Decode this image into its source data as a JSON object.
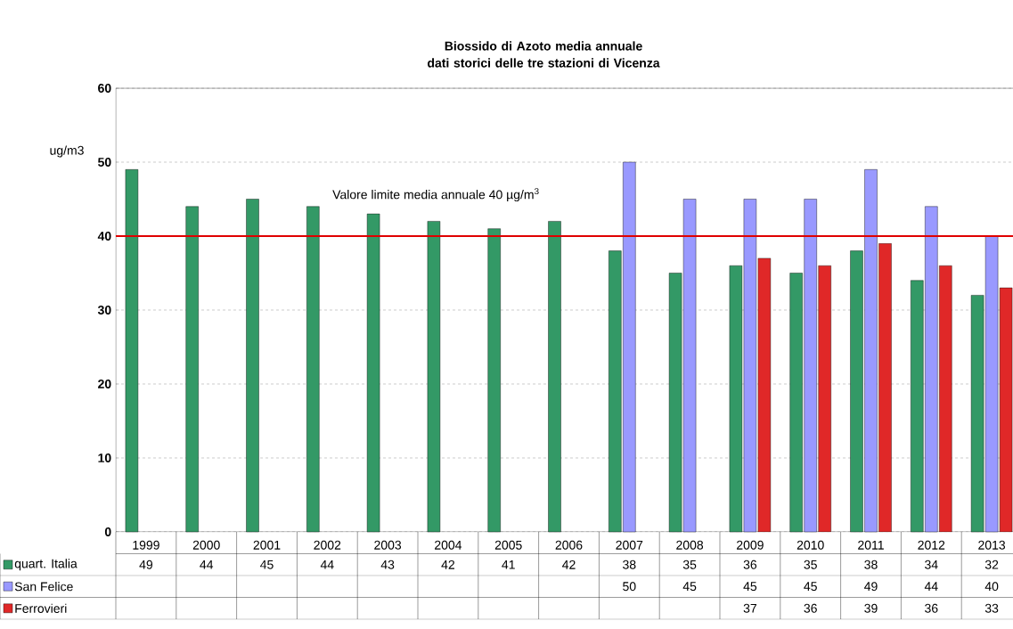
{
  "chart_data": {
    "type": "bar",
    "title": "Biossido di Azoto media annuale\ndati storici delle tre stazioni di Vicenza",
    "ylabel": "ug/m3",
    "categories": [
      "1999",
      "2000",
      "2001",
      "2002",
      "2003",
      "2004",
      "2005",
      "2006",
      "2007",
      "2008",
      "2009",
      "2010",
      "2011",
      "2012",
      "2013"
    ],
    "series": [
      {
        "name": "quart. Italia",
        "color": "#339966",
        "values": [
          49,
          44,
          45,
          44,
          43,
          42,
          41,
          42,
          38,
          35,
          36,
          35,
          38,
          34,
          32
        ]
      },
      {
        "name": "San Felice",
        "color": "#9999ff",
        "values": [
          null,
          null,
          null,
          null,
          null,
          null,
          null,
          null,
          50,
          45,
          45,
          45,
          49,
          44,
          40
        ]
      },
      {
        "name": "Ferrovieri",
        "color": "#e02828",
        "values": [
          null,
          null,
          null,
          null,
          null,
          null,
          null,
          null,
          null,
          null,
          37,
          36,
          39,
          36,
          33
        ]
      }
    ],
    "ylim": [
      0,
      60
    ],
    "yticks": [
      0,
      10,
      20,
      30,
      40,
      50,
      60
    ],
    "grid": "y",
    "legend": "bottom left",
    "data_labels": true,
    "ref_lines": [
      {
        "axis": "y",
        "value": 40,
        "label": "Valore limite media annuale 40 µg/m$^{3}$",
        "color": "#e00000"
      }
    ]
  }
}
